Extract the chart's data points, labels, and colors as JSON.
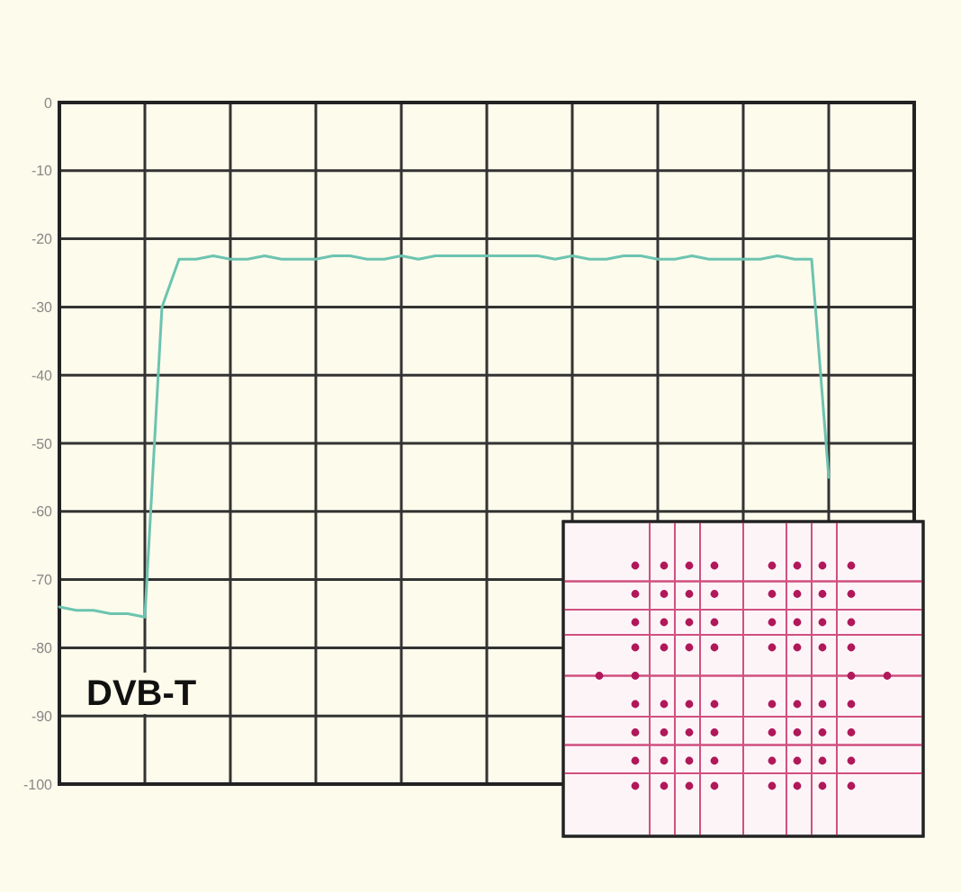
{
  "chart_data": {
    "type": "line",
    "categories": [
      null,
      null,
      null,
      null,
      null,
      null,
      null,
      null,
      null,
      null,
      null,
      null,
      null,
      null,
      null,
      null,
      null,
      null,
      null,
      null,
      null,
      null,
      null,
      null,
      null,
      null,
      null,
      null,
      null,
      null,
      null,
      null,
      null,
      null,
      null,
      null,
      null,
      null,
      null,
      null,
      null,
      null,
      null,
      null,
      null,
      null,
      null,
      null,
      null,
      null,
      null
    ],
    "series": [
      {
        "color": "#6cc4b0",
        "values": [
          -74,
          -74.5,
          -74.5,
          -75,
          -75,
          -75.5,
          -30,
          -23,
          -23,
          -22.5,
          -23,
          -23,
          -22.5,
          -23,
          -23,
          -23,
          -22.5,
          -22.5,
          -23,
          -23,
          -22.5,
          -23,
          -22.5,
          -22.5,
          -22.5,
          -22.5,
          -22.5,
          -22.5,
          -22.5,
          -23,
          -22.5,
          -23,
          -23,
          -22.5,
          -22.5,
          -23,
          -23,
          -22.5,
          -23,
          -23,
          -23,
          -23,
          -22.5,
          -23,
          -23,
          -55,
          null,
          null,
          null,
          null,
          null
        ]
      }
    ],
    "ylim": [
      -100,
      0
    ],
    "yticks": [
      0,
      -10,
      -20,
      -30,
      -40,
      -50,
      -60,
      -70,
      -80,
      -90,
      -100
    ],
    "grid": true,
    "annotations": [
      "DVB-T"
    ]
  }
}
